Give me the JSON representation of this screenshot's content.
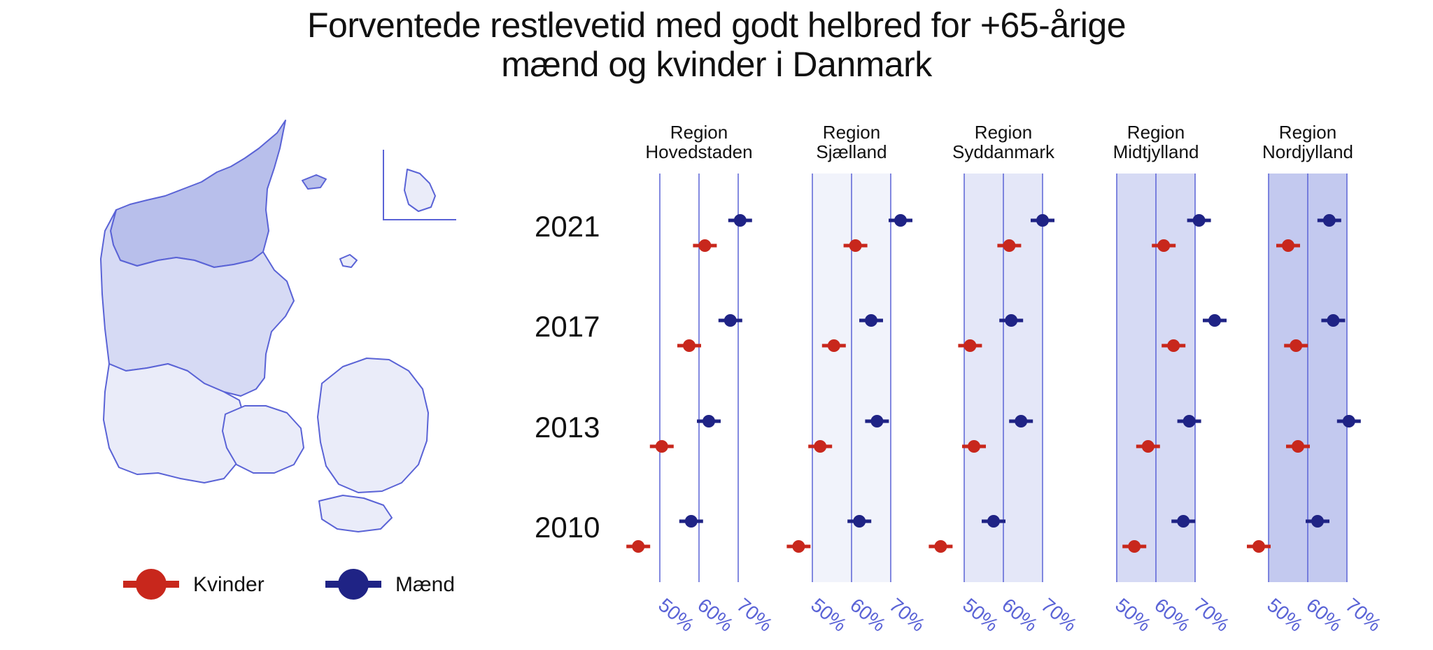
{
  "title": {
    "line1": "Forventede restlevetid med godt helbred for +65-årige",
    "line2": "mænd og kvinder i Danmark"
  },
  "colors": {
    "kvinder": "#c8271c",
    "maend": "#1f2385",
    "grid": "#5a63d6",
    "tick_label": "#5a63d6",
    "map_fill_light": "#eaecf9",
    "map_fill_mid": "#d6daf4",
    "map_fill_dark": "#b8bfeb",
    "map_stroke": "#5a63d6",
    "band_sjaelland": "#f1f3fb",
    "band_syddanmark": "#e4e7f8",
    "band_midtjylland": "#d6daf4",
    "band_nordjylland": "#c3c9ef"
  },
  "legend": {
    "kvinder_label": "Kvinder",
    "maend_label": "Mænd"
  },
  "chart_data": {
    "type": "scatter",
    "title": "Forventede restlevetid med godt helbred for +65-årige mænd og kvinder i Danmark",
    "years": [
      "2021",
      "2017",
      "2013",
      "2010"
    ],
    "xticks": [
      "50%",
      "60%",
      "70%"
    ],
    "xlim": [
      50,
      70
    ],
    "panels": [
      {
        "label_line1": "Region",
        "label_line2": "Hovedstaden",
        "kvinder": [
          61.5,
          57.5,
          50.5,
          44.5
        ],
        "maend": [
          70.5,
          68.0,
          62.5,
          58.0
        ]
      },
      {
        "label_line1": "Region",
        "label_line2": "Sjælland",
        "kvinder": [
          61.0,
          55.5,
          52.0,
          46.5
        ],
        "maend": [
          72.5,
          65.0,
          66.5,
          62.0
        ]
      },
      {
        "label_line1": "Region",
        "label_line2": "Syddanmark",
        "kvinder": [
          61.5,
          51.5,
          52.5,
          44.0
        ],
        "maend": [
          70.0,
          62.0,
          64.5,
          57.5
        ]
      },
      {
        "label_line1": "Region",
        "label_line2": "Midtjylland",
        "kvinder": [
          62.0,
          64.5,
          58.0,
          54.5
        ],
        "maend": [
          71.0,
          75.0,
          68.5,
          67.0
        ]
      },
      {
        "label_line1": "Region",
        "label_line2": "Nordjylland",
        "kvinder": [
          55.0,
          57.0,
          57.5,
          47.5
        ],
        "maend": [
          65.5,
          66.5,
          70.5,
          62.5
        ]
      }
    ]
  }
}
